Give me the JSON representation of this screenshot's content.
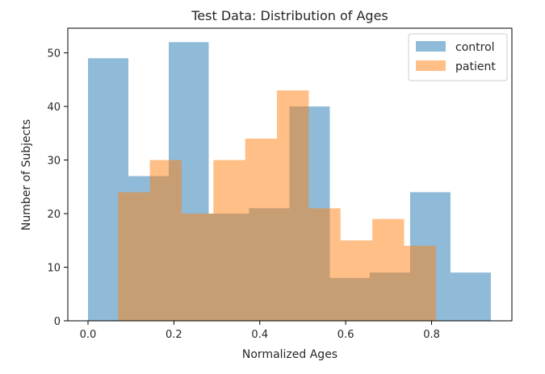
{
  "chart_data": {
    "type": "histogram",
    "title": "Test Data: Distribution of Ages",
    "xlabel": "Normalized Ages",
    "ylabel": "Number of Subjects",
    "xlim": [
      -0.047,
      0.987
    ],
    "ylim": [
      0,
      54.6
    ],
    "xticks": [
      0.0,
      0.2,
      0.4,
      0.6,
      0.8
    ],
    "xtick_labels": [
      "0.0",
      "0.2",
      "0.4",
      "0.6",
      "0.8"
    ],
    "yticks": [
      0,
      10,
      20,
      30,
      40,
      50
    ],
    "ytick_labels": [
      "0",
      "10",
      "20",
      "30",
      "40",
      "50"
    ],
    "grid": false,
    "legend_position": "top-right",
    "series": [
      {
        "name": "control",
        "color": "#1f77b4",
        "alpha": 0.5,
        "bin_edges": [
          0.0,
          0.094,
          0.188,
          0.281,
          0.375,
          0.469,
          0.563,
          0.656,
          0.75,
          0.844,
          0.938
        ],
        "counts": [
          49,
          27,
          52,
          20,
          21,
          40,
          8,
          9,
          24,
          9
        ]
      },
      {
        "name": "patient",
        "color": "#ff7f0e",
        "alpha": 0.5,
        "bin_edges": [
          0.07,
          0.144,
          0.218,
          0.292,
          0.366,
          0.44,
          0.514,
          0.588,
          0.662,
          0.736,
          0.81
        ],
        "counts": [
          24,
          30,
          20,
          30,
          34,
          43,
          21,
          15,
          19,
          14
        ]
      }
    ]
  }
}
